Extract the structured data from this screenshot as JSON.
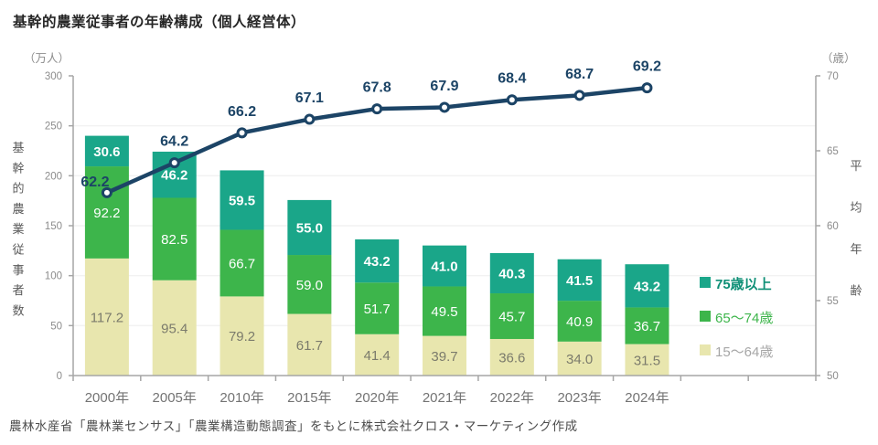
{
  "title": "基幹的農業従事者の年齢構成（個人経営体）",
  "source_note": "農林水産省「農林業センサス」「農業構造動態調査」をもとに株式会社クロス・マーケティング作成",
  "chart_data": {
    "type": "bar",
    "subtype": "stacked-bar-with-line",
    "categories": [
      "2000年",
      "2005年",
      "2010年",
      "2015年",
      "2020年",
      "2021年",
      "2022年",
      "2023年",
      "2024年"
    ],
    "series": [
      {
        "key": "age-75-plus",
        "name": "75歳以上",
        "color": "#1aa689",
        "label_color": "#ffffff",
        "label_bold": true,
        "values": [
          30.6,
          46.2,
          59.5,
          55.0,
          43.2,
          41.0,
          40.3,
          41.5,
          43.2
        ]
      },
      {
        "key": "age-65-74",
        "name": "65〜74歳",
        "color": "#3db54b",
        "label_color": "#ffffff",
        "label_bold": false,
        "values": [
          92.2,
          82.5,
          66.7,
          59.0,
          51.7,
          49.5,
          45.7,
          40.9,
          36.7
        ]
      },
      {
        "key": "age-15-64",
        "name": "15〜64歳",
        "color": "#e8e6ae",
        "label_color": "#7b7b6c",
        "label_bold": false,
        "values": [
          117.2,
          95.4,
          79.2,
          61.7,
          41.4,
          39.7,
          36.6,
          34.0,
          31.5
        ]
      }
    ],
    "line_series": {
      "key": "average-age",
      "name": "平均年齢",
      "color": "#1c4466",
      "label_color": "#1c4466",
      "values": [
        62.2,
        64.2,
        66.2,
        67.1,
        67.8,
        67.9,
        68.4,
        68.7,
        69.2
      ]
    },
    "left_axis": {
      "unit": "（万人）",
      "title": "基幹的農業従事者数",
      "min": 0,
      "max": 300,
      "step": 50,
      "tick_color": "#8c8c8c",
      "title_color": "#595959"
    },
    "right_axis": {
      "unit": "（歳）",
      "title": "平均年齢",
      "min": 50,
      "max": 70,
      "step": 5,
      "tick_color": "#8c8c8c",
      "title_color": "#595959"
    },
    "x_axis": {
      "label_color": "#737373",
      "axis_color": "#a6a6a6"
    },
    "grid": true,
    "grid_color": "#f2f2f2",
    "legend_position": "right-middle",
    "legend": [
      {
        "label": "75歳以上",
        "swatch": "#1aa689",
        "text_color": "#0e8f76",
        "bold": true
      },
      {
        "label": "65〜74歳",
        "swatch": "#3db54b",
        "text_color": "#3db54b",
        "bold": false
      },
      {
        "label": "15〜64歳",
        "swatch": "#e8e6ae",
        "text_color": "#a6a6a6",
        "bold": false
      }
    ]
  }
}
